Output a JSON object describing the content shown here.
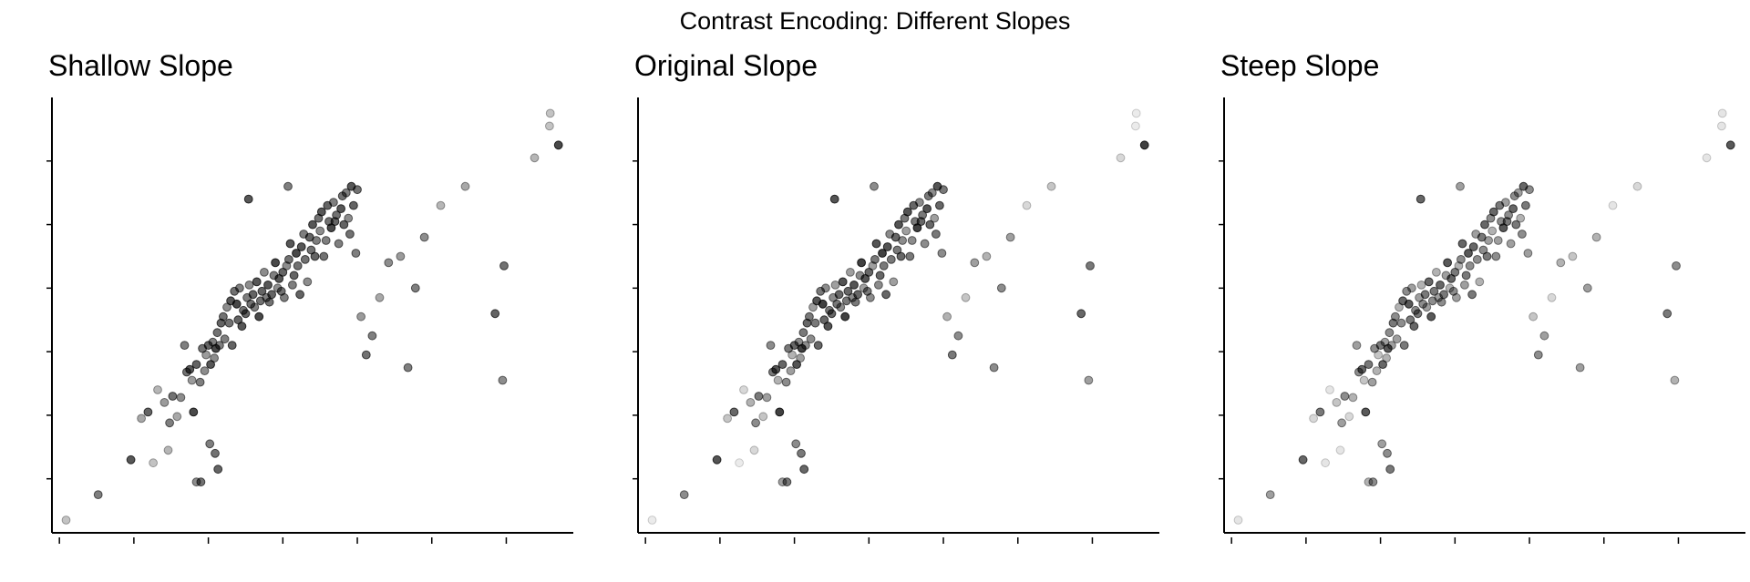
{
  "suptitle": "Contrast Encoding: Different Slopes",
  "marker_color": "#000000",
  "chart_data": [
    {
      "type": "scatter",
      "title": "Shallow Slope",
      "xlabel": "",
      "ylabel": "",
      "tick_labels_shown": false,
      "alpha_range": [
        0.12,
        0.88
      ]
    },
    {
      "type": "scatter",
      "title": "Original Slope",
      "xlabel": "",
      "ylabel": "",
      "tick_labels_shown": false,
      "alpha_range": [
        0.08,
        0.82
      ]
    },
    {
      "type": "scatter",
      "title": "Steep Slope",
      "xlabel": "",
      "ylabel": "",
      "tick_labels_shown": false,
      "alpha_range": [
        0.1,
        0.65
      ]
    }
  ],
  "points": {
    "x": [
      -2.41,
      -1.98,
      -1.54,
      -1.4,
      -1.31,
      -1.18,
      -1.09,
      -1.02,
      -0.98,
      -0.92,
      -0.87,
      -0.82,
      -0.79,
      -0.75,
      -0.72,
      -0.7,
      -0.66,
      -0.61,
      -0.58,
      -0.55,
      -0.53,
      -0.5,
      -0.47,
      -0.44,
      -0.42,
      -0.4,
      -0.38,
      -0.35,
      -0.33,
      -0.3,
      -0.28,
      -0.25,
      -0.22,
      -0.2,
      -0.18,
      -0.15,
      -0.12,
      -0.1,
      -0.08,
      -0.05,
      -0.03,
      0.0,
      0.02,
      0.05,
      0.07,
      0.1,
      0.12,
      0.15,
      0.18,
      0.2,
      0.22,
      0.25,
      0.28,
      0.3,
      0.32,
      0.35,
      0.38,
      0.4,
      0.43,
      0.45,
      0.48,
      0.5,
      0.52,
      0.55,
      0.58,
      0.6,
      0.63,
      0.65,
      0.68,
      0.7,
      0.73,
      0.75,
      0.78,
      0.8,
      0.83,
      0.86,
      0.88,
      0.9,
      0.93,
      0.95,
      0.98,
      1.0,
      1.02,
      1.05,
      1.08,
      1.1,
      1.12,
      1.15,
      1.18,
      1.2,
      1.22,
      1.25,
      1.28,
      1.3,
      1.32,
      1.35,
      1.38,
      1.4,
      1.42,
      1.45,
      1.48,
      1.5,
      1.55,
      1.62,
      1.7,
      1.8,
      1.92,
      2.08,
      2.18,
      2.28,
      2.4,
      2.62,
      2.95,
      3.35,
      3.45,
      3.47,
      3.88,
      4.08,
      4.09,
      4.2,
      -1.24,
      -1.04,
      -0.66,
      -0.48,
      -0.41,
      -0.37,
      -0.6,
      0.04,
      0.57
    ],
    "y": [
      -3.15,
      -2.75,
      -2.2,
      -1.55,
      -1.45,
      -1.1,
      -1.3,
      -1.62,
      -1.2,
      -1.52,
      -1.22,
      -0.4,
      -0.82,
      -0.78,
      -0.95,
      -1.45,
      -0.7,
      -0.98,
      -0.45,
      -0.8,
      -0.55,
      -0.4,
      -0.7,
      -0.35,
      -0.6,
      -0.45,
      -0.2,
      -0.4,
      -0.05,
      0.05,
      -0.3,
      0.2,
      -0.05,
      0.3,
      -0.4,
      0.45,
      0.25,
      0.0,
      0.5,
      -0.1,
      0.15,
      0.1,
      0.35,
      0.55,
      0.25,
      0.4,
      0.2,
      0.6,
      0.05,
      0.3,
      0.45,
      0.75,
      0.35,
      0.55,
      0.28,
      0.4,
      0.7,
      0.9,
      0.5,
      0.65,
      0.45,
      0.75,
      0.35,
      0.85,
      0.95,
      1.2,
      0.55,
      0.7,
      1.05,
      0.85,
      0.4,
      1.15,
      1.35,
      0.95,
      0.6,
      1.3,
      1.1,
      1.5,
      1.0,
      1.25,
      1.6,
      1.4,
      1.7,
      1.0,
      1.25,
      1.8,
      1.55,
      1.45,
      1.85,
      1.55,
      1.65,
      1.2,
      1.75,
      1.95,
      1.5,
      2.0,
      1.6,
      1.35,
      2.1,
      1.8,
      1.05,
      2.05,
      0.05,
      -0.55,
      -0.25,
      0.35,
      0.9,
      1.0,
      -0.75,
      0.5,
      1.3,
      1.8,
      2.1,
      0.1,
      -0.95,
      0.85,
      2.55,
      3.05,
      3.25,
      2.75,
      -2.25,
      -2.05,
      -2.55,
      -1.95,
      -2.1,
      -2.35,
      -2.55,
      1.9,
      2.1
    ],
    "contrast": [
      0.0,
      0.05,
      0.08,
      0.02,
      0.07,
      0.01,
      0.03,
      0.05,
      0.06,
      0.02,
      0.04,
      0.05,
      0.06,
      0.08,
      0.03,
      0.09,
      0.07,
      0.05,
      0.06,
      0.04,
      0.03,
      0.07,
      0.08,
      0.05,
      0.04,
      0.09,
      0.06,
      0.05,
      0.07,
      0.06,
      0.05,
      0.04,
      0.06,
      0.08,
      0.07,
      0.06,
      0.09,
      0.07,
      0.05,
      0.08,
      0.06,
      0.07,
      0.05,
      0.04,
      0.06,
      0.07,
      0.05,
      0.08,
      0.09,
      0.06,
      0.07,
      0.04,
      0.05,
      0.08,
      0.06,
      0.07,
      0.05,
      0.09,
      0.04,
      0.08,
      0.06,
      0.07,
      0.05,
      0.04,
      0.06,
      0.08,
      0.05,
      0.07,
      0.09,
      0.06,
      0.07,
      0.08,
      0.05,
      0.06,
      0.04,
      0.07,
      0.06,
      0.08,
      0.07,
      0.05,
      0.06,
      0.04,
      0.08,
      0.06,
      0.05,
      0.07,
      0.06,
      0.09,
      0.05,
      0.07,
      0.06,
      0.05,
      0.08,
      0.06,
      0.07,
      0.05,
      0.04,
      0.06,
      0.08,
      0.07,
      0.05,
      0.06,
      0.03,
      0.06,
      0.05,
      0.02,
      0.04,
      0.03,
      0.05,
      0.05,
      0.04,
      0.01,
      0.02,
      0.07,
      0.04,
      0.06,
      0.01,
      0.0,
      0.0,
      0.09,
      0.0,
      0.01,
      0.04,
      0.05,
      0.06,
      0.07,
      0.06,
      0.08,
      0.05
    ]
  }
}
